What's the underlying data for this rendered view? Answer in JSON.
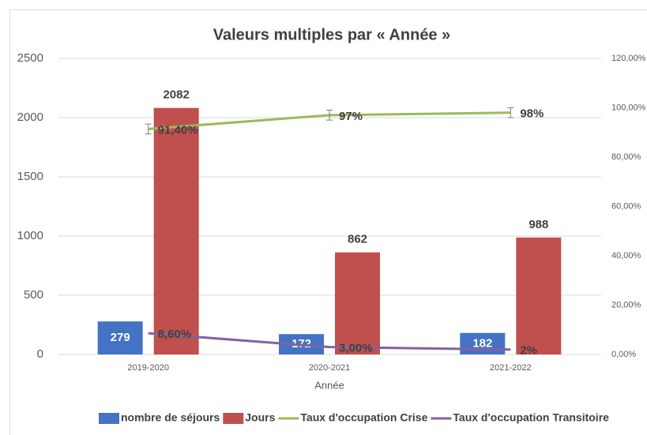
{
  "chart_data": {
    "type": "bar",
    "title": "Valeurs multiples par « Année »",
    "x_label": "Année",
    "categories": [
      "2019-2020",
      "2020-2021",
      "2021-2022"
    ],
    "series": [
      {
        "name": "nombre de séjours",
        "type": "bar",
        "color": "#4472c4",
        "values": [
          279,
          172,
          182
        ]
      },
      {
        "name": "Jours",
        "type": "bar",
        "color": "#c0504d",
        "values": [
          2082,
          862,
          988
        ]
      },
      {
        "name": "Taux d'occupation Crise",
        "type": "line",
        "axis": "y2",
        "color": "#9bbb59",
        "values": [
          91.4,
          97,
          98
        ],
        "value_labels": [
          "91,40%",
          "97%",
          "98%"
        ],
        "errors": [
          2,
          2,
          2
        ]
      },
      {
        "name": "Taux d'occupation Transitoire",
        "type": "line",
        "axis": "y2",
        "color": "#8064a2",
        "values": [
          8.6,
          3.0,
          2
        ],
        "value_labels": [
          "8,60%",
          "3,00%",
          "2%"
        ]
      }
    ],
    "ylim": [
      0,
      2500
    ],
    "yticks": [
      0,
      500,
      1000,
      1500,
      2000,
      2500
    ],
    "y2lim": [
      0,
      120
    ],
    "y2ticks": [
      {
        "value": 0,
        "label": "0,00%"
      },
      {
        "value": 20,
        "label": "20,00%"
      },
      {
        "value": 40,
        "label": "40,00%"
      },
      {
        "value": 60,
        "label": "60,00%"
      },
      {
        "value": 80,
        "label": "80,00%"
      },
      {
        "value": 100,
        "label": "100,00%"
      },
      {
        "value": 120,
        "label": "120,00%"
      }
    ],
    "grid": true,
    "legend": "bottom"
  }
}
